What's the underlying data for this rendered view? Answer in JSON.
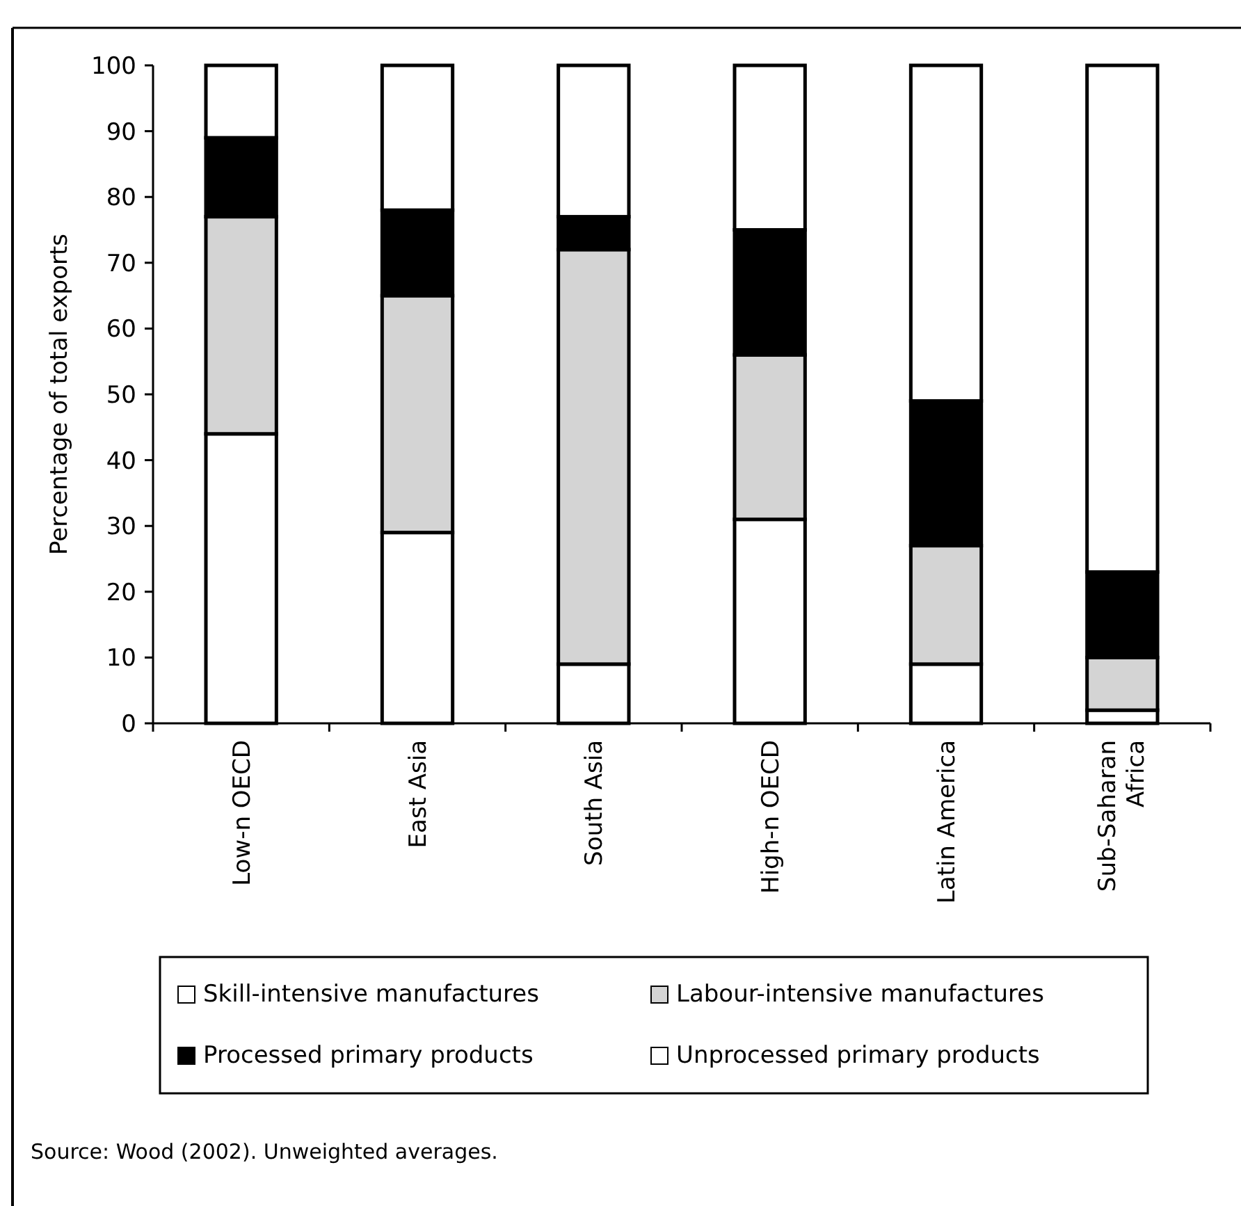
{
  "chart_data": {
    "type": "bar",
    "stacked": true,
    "ylabel": "Percentage of total exports",
    "categories": [
      "Low-n OECD",
      "East Asia",
      "South Asia",
      "High-n OECD",
      "Latin America",
      "Sub-Saharan Africa"
    ],
    "series": [
      {
        "name": "Skill-intensive manufactures",
        "color": "#ffffff",
        "values": [
          44,
          29,
          9,
          31,
          9,
          2
        ]
      },
      {
        "name": "Labour-intensive manufactures",
        "color": "#d4d4d4",
        "values": [
          33,
          36,
          63,
          25,
          18,
          8
        ]
      },
      {
        "name": "Processed primary products",
        "color": "#000000",
        "values": [
          12,
          13,
          5,
          19,
          22,
          13
        ]
      },
      {
        "name": "Unprocessed primary products",
        "color": "#ffffff",
        "values": [
          11,
          22,
          23,
          25,
          51,
          77
        ]
      }
    ],
    "ylim": [
      0,
      100
    ],
    "yticks": [
      0,
      10,
      20,
      30,
      40,
      50,
      60,
      70,
      80,
      90,
      100
    ],
    "legend": "bottom",
    "grid": false,
    "annotations": [
      "Source: Wood (2002). Unweighted averages."
    ]
  }
}
